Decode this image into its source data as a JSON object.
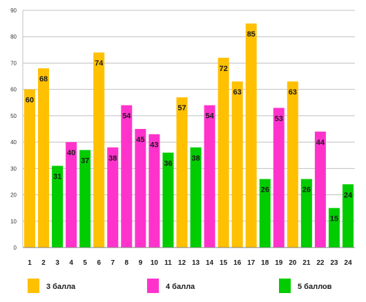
{
  "chart_data": {
    "type": "bar",
    "categories": [
      "1",
      "2",
      "3",
      "4",
      "5",
      "6",
      "7",
      "8",
      "9",
      "10",
      "11",
      "12",
      "13",
      "14",
      "15",
      "16",
      "17",
      "18",
      "19",
      "20",
      "21",
      "22",
      "23",
      "24"
    ],
    "values": [
      60,
      68,
      31,
      40,
      37,
      74,
      38,
      54,
      45,
      43,
      36,
      57,
      38,
      54,
      72,
      63,
      85,
      26,
      53,
      63,
      26,
      44,
      15,
      24
    ],
    "bar_groups": [
      "3 балла",
      "3 балла",
      "5 баллов",
      "4 балла",
      "5 баллов",
      "3 балла",
      "4 балла",
      "4 балла",
      "4 балла",
      "4 балла",
      "5 баллов",
      "3 балла",
      "5 баллов",
      "4 балла",
      "3 балла",
      "3 балла",
      "3 балла",
      "5 баллов",
      "4 балла",
      "3 балла",
      "5 баллов",
      "4 балла",
      "5 баллов",
      "5 баллов"
    ],
    "series": [
      {
        "name": "3 балла",
        "color": "#FFC000"
      },
      {
        "name": "4 балла",
        "color": "#FF33CC"
      },
      {
        "name": "5 баллов",
        "color": "#00CC00"
      }
    ],
    "ylim": [
      0,
      90
    ],
    "yticks": [
      0,
      10,
      20,
      30,
      40,
      50,
      60,
      70,
      80,
      90
    ],
    "grid": true,
    "legend_position": "bottom",
    "data_labels": true
  }
}
